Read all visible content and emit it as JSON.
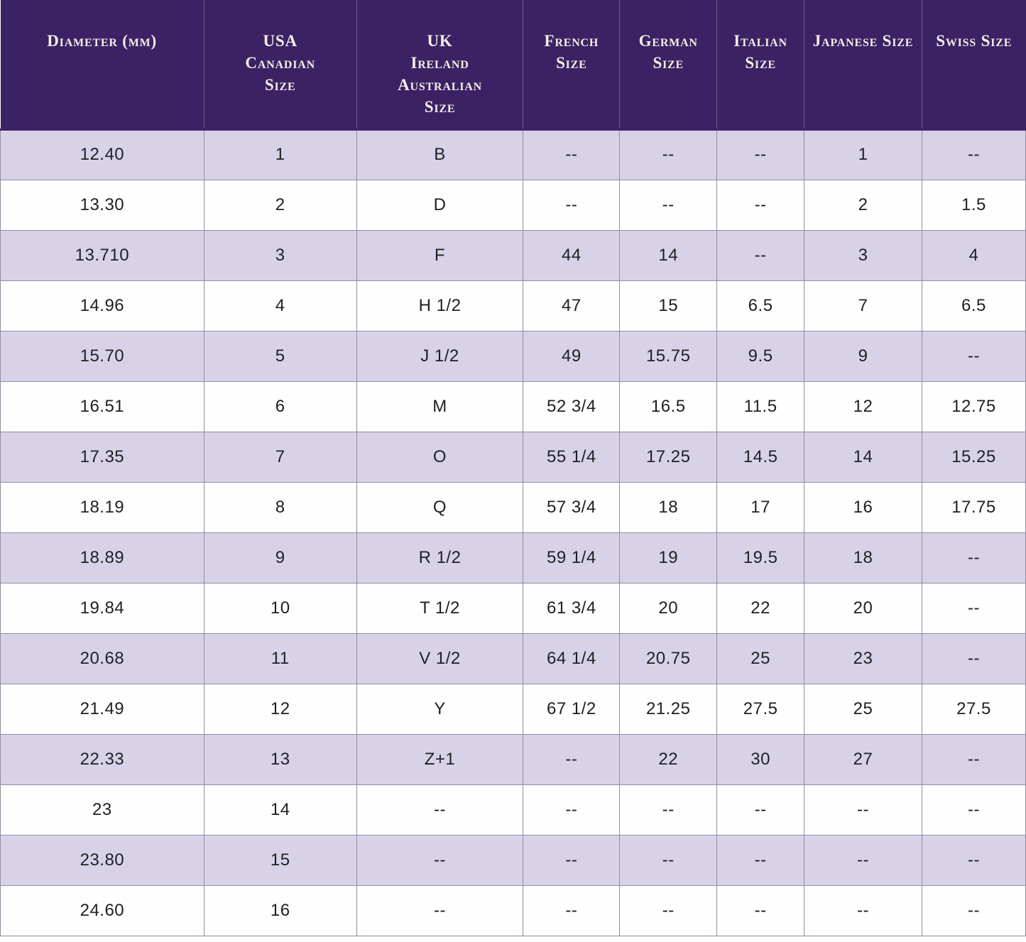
{
  "colors": {
    "header_bg": "#3b2264",
    "header_text": "#f4efe6",
    "row_alt_bg": "#d8d2e8",
    "row_bg": "#fefefe",
    "body_text": "#1f1f24",
    "grid_line": "#918da0"
  },
  "header_display": [
    "Diameter (mm)",
    "USA\nCanadian\nSize",
    "UK\nIreland\nAustralian\nSize",
    "French\nSize",
    "German\nSize",
    "Italian\nSize",
    "Japanese Size",
    "Swiss Size"
  ],
  "chart_data": {
    "type": "table",
    "columns": [
      "Diameter (mm)",
      "USA Canadian Size",
      "UK Ireland Australian Size",
      "French Size",
      "German Size",
      "Italian Size",
      "Japanese Size",
      "Swiss Size"
    ],
    "rows": [
      [
        "12.40",
        "1",
        "B",
        "--",
        "--",
        "--",
        "1",
        "--"
      ],
      [
        "13.30",
        "2",
        "D",
        "--",
        "--",
        "--",
        "2",
        "1.5"
      ],
      [
        "13.710",
        "3",
        "F",
        "44",
        "14",
        "--",
        "3",
        "4"
      ],
      [
        "14.96",
        "4",
        "H 1/2",
        "47",
        "15",
        "6.5",
        "7",
        "6.5"
      ],
      [
        "15.70",
        "5",
        "J 1/2",
        "49",
        "15.75",
        "9.5",
        "9",
        "--"
      ],
      [
        "16.51",
        "6",
        "M",
        "52 3/4",
        "16.5",
        "11.5",
        "12",
        "12.75"
      ],
      [
        "17.35",
        "7",
        "O",
        "55 1/4",
        "17.25",
        "14.5",
        "14",
        "15.25"
      ],
      [
        "18.19",
        "8",
        "Q",
        "57 3/4",
        "18",
        "17",
        "16",
        "17.75"
      ],
      [
        "18.89",
        "9",
        "R 1/2",
        "59 1/4",
        "19",
        "19.5",
        "18",
        "--"
      ],
      [
        "19.84",
        "10",
        "T 1/2",
        "61 3/4",
        "20",
        "22",
        "20",
        "--"
      ],
      [
        "20.68",
        "11",
        "V 1/2",
        "64 1/4",
        "20.75",
        "25",
        "23",
        "--"
      ],
      [
        "21.49",
        "12",
        "Y",
        "67 1/2",
        "21.25",
        "27.5",
        "25",
        "27.5"
      ],
      [
        "22.33",
        "13",
        "Z+1",
        "--",
        "22",
        "30",
        "27",
        "--"
      ],
      [
        "23",
        "14",
        "--",
        "--",
        "--",
        "--",
        "--",
        "--"
      ],
      [
        "23.80",
        "15",
        "--",
        "--",
        "--",
        "--",
        "--",
        "--"
      ],
      [
        "24.60",
        "16",
        "--",
        "--",
        "--",
        "--",
        "--",
        "--"
      ]
    ],
    "layout": {
      "striped_rows": "odd rows lavender, even rows white",
      "header_position": "top",
      "grid": true
    }
  }
}
